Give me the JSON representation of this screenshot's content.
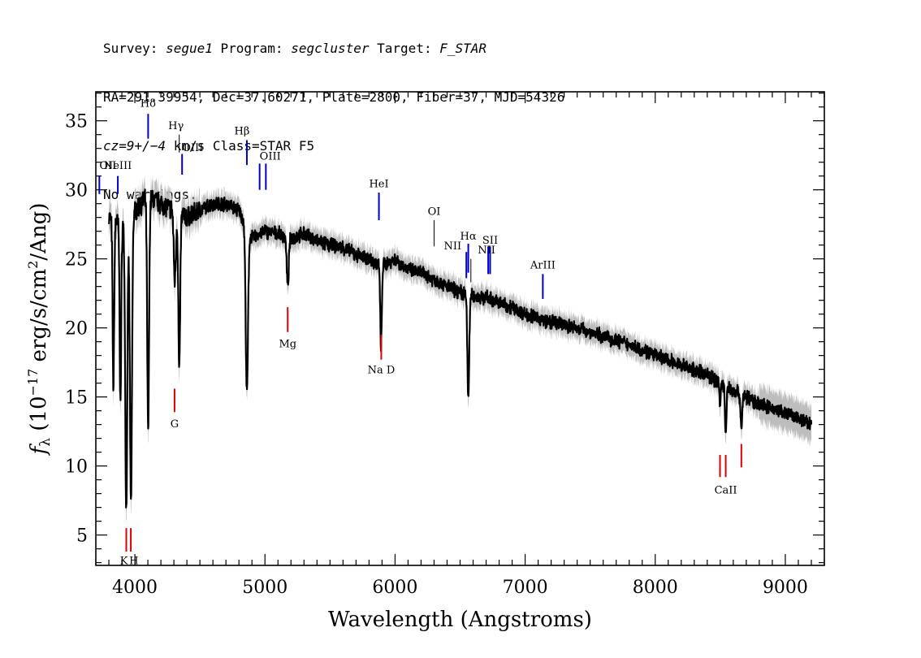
{
  "header": {
    "line1_parts": [
      "Survey: ",
      "segue1",
      " Program: ",
      "segcluster",
      " Target: ",
      "F_STAR"
    ],
    "line2": "RA=291.39954, Dec=37.60271, Plate=2800, Fiber=37, MJD=54326",
    "line3_parts": [
      "cz=9+/−4",
      " km/s Class=STAR F5"
    ],
    "line4": "No warnings."
  },
  "chart_data": {
    "type": "line",
    "xlabel": "Wavelength (Angstroms)",
    "ylabel": "fλ (10^-17 erg/s/cm^2/Ang)",
    "xlim": [
      3700,
      9300
    ],
    "ylim": [
      2.8,
      37.1
    ],
    "xticks": [
      4000,
      5000,
      6000,
      7000,
      8000,
      9000
    ],
    "yticks": [
      5,
      10,
      15,
      20,
      25,
      30,
      35
    ],
    "colors": {
      "spectrum": "#000000",
      "error": "#bdbdbd",
      "emission": "#0000cc",
      "absorption": "#dd0000",
      "marker_thin": "#000000"
    },
    "continuum": [
      [
        3800,
        28
      ],
      [
        3900,
        27.5
      ],
      [
        4000,
        28.5
      ],
      [
        4100,
        29.5
      ],
      [
        4200,
        29
      ],
      [
        4300,
        28.5
      ],
      [
        4400,
        28
      ],
      [
        4500,
        28.5
      ],
      [
        4600,
        29
      ],
      [
        4700,
        29
      ],
      [
        4800,
        28.5
      ],
      [
        4900,
        26.5
      ],
      [
        5000,
        27
      ],
      [
        5100,
        26.8
      ],
      [
        5200,
        26.5
      ],
      [
        5300,
        26.8
      ],
      [
        5400,
        26.3
      ],
      [
        5500,
        26
      ],
      [
        5600,
        25.8
      ],
      [
        5700,
        25.3
      ],
      [
        5800,
        25
      ],
      [
        5900,
        24.5
      ],
      [
        6000,
        25
      ],
      [
        6100,
        24.2
      ],
      [
        6200,
        24
      ],
      [
        6300,
        23.5
      ],
      [
        6400,
        23
      ],
      [
        6500,
        22.6
      ],
      [
        6600,
        22.3
      ],
      [
        6700,
        22.2
      ],
      [
        6800,
        21.8
      ],
      [
        6900,
        21.5
      ],
      [
        7000,
        21
      ],
      [
        7200,
        20.4
      ],
      [
        7400,
        20
      ],
      [
        7600,
        19.4
      ],
      [
        7800,
        18.8
      ],
      [
        8000,
        18
      ],
      [
        8200,
        17.3
      ],
      [
        8400,
        16.6
      ],
      [
        8600,
        15.5
      ],
      [
        8800,
        14.5
      ],
      [
        9000,
        13.8
      ],
      [
        9200,
        13
      ]
    ],
    "absorption_features": [
      {
        "center": 3835,
        "depth": 12,
        "width": 6
      },
      {
        "center": 3889,
        "depth": 13,
        "width": 6
      },
      {
        "center": 3934,
        "depth": 21,
        "width": 8
      },
      {
        "center": 3970,
        "depth": 21,
        "width": 8
      },
      {
        "center": 4102,
        "depth": 17,
        "width": 7
      },
      {
        "center": 4307,
        "depth": 5,
        "width": 8
      },
      {
        "center": 4341,
        "depth": 11.5,
        "width": 7
      },
      {
        "center": 4861,
        "depth": 12,
        "width": 9
      },
      {
        "center": 5175,
        "depth": 3.5,
        "width": 8
      },
      {
        "center": 5892,
        "depth": 6,
        "width": 6
      },
      {
        "center": 6563,
        "depth": 7.5,
        "width": 7
      },
      {
        "center": 8498,
        "depth": 1.5,
        "width": 5
      },
      {
        "center": 8542,
        "depth": 3.5,
        "width": 6
      },
      {
        "center": 8662,
        "depth": 2.5,
        "width": 6
      }
    ],
    "line_markers": [
      {
        "label": "OII",
        "x": 3727,
        "y1": 29.7,
        "y2": 31.0,
        "color": "#0000cc",
        "label_y": 31.5,
        "anchor": "start",
        "dx": 0
      },
      {
        "label": "NeIII",
        "x": 3869,
        "y1": 29.7,
        "y2": 31.0,
        "color": "#0000cc",
        "label_y": 31.5,
        "anchor": "middle",
        "dx": 0
      },
      {
        "label": "Hδ",
        "x": 4102,
        "y1": 33.7,
        "y2": 35.5,
        "color": "#0000cc",
        "label_y": 36.0,
        "anchor": "middle",
        "dx": 0
      },
      {
        "label": "Hγ",
        "x": 4341,
        "y1": 32.7,
        "y2": 34.0,
        "color": "#000000",
        "label_y": 34.4,
        "anchor": "middle",
        "dx": -4
      },
      {
        "label": "OIII",
        "x": 4363,
        "y1": 31.1,
        "y2": 32.6,
        "color": "#0000cc",
        "label_y": 32.8,
        "anchor": "start",
        "dx": 0
      },
      {
        "label": "Hβ",
        "x": 4861,
        "y1": 31.8,
        "y2": 33.6,
        "color": "#0000cc",
        "label_y": 34.0,
        "anchor": "middle",
        "dx": -6
      },
      {
        "label": "OIII",
        "x": 4959,
        "y1": 30.0,
        "y2": 31.9,
        "color": "#0000cc",
        "label_y": 32.2,
        "anchor": "start",
        "dx": 0
      },
      {
        "label": "",
        "x": 5007,
        "y1": 30.0,
        "y2": 31.9,
        "color": "#0000cc",
        "label_y": 0,
        "anchor": "middle",
        "dx": 0
      },
      {
        "label": "HeI",
        "x": 5876,
        "y1": 27.8,
        "y2": 29.8,
        "color": "#0000cc",
        "label_y": 30.2,
        "anchor": "middle",
        "dx": 0
      },
      {
        "label": "OI",
        "x": 6300,
        "y1": 25.9,
        "y2": 27.8,
        "color": "#000000",
        "label_y": 28.2,
        "anchor": "middle",
        "dx": 0
      },
      {
        "label": "NII",
        "x": 6548,
        "y1": 23.6,
        "y2": 25.5,
        "color": "#0000cc",
        "label_y": 25.7,
        "anchor": "end",
        "dx": -6
      },
      {
        "label": "Hα",
        "x": 6563,
        "y1": 24.0,
        "y2": 26.1,
        "color": "#0000cc",
        "label_y": 26.4,
        "anchor": "middle",
        "dx": 0
      },
      {
        "label": "",
        "x": 6583,
        "y1": 23.3,
        "y2": 25.0,
        "color": "#000000",
        "label_y": 0,
        "anchor": "middle",
        "dx": 0
      },
      {
        "label": "NII",
        "x": 6716,
        "y1": 23.9,
        "y2": 25.9,
        "color": "#0000cc",
        "label_y": 25.4,
        "anchor": "middle",
        "dx": -2
      },
      {
        "label": "SII",
        "x": 6731,
        "y1": 23.9,
        "y2": 25.9,
        "color": "#0000cc",
        "label_y": 26.1,
        "anchor": "middle",
        "dx": 0
      },
      {
        "label": "ArIII",
        "x": 7136,
        "y1": 22.1,
        "y2": 23.9,
        "color": "#0000cc",
        "label_y": 24.3,
        "anchor": "middle",
        "dx": 0
      },
      {
        "label": "K",
        "x": 3934,
        "y1": 3.8,
        "y2": 5.5,
        "color": "#dd0000",
        "label_y": 2.9,
        "anchor": "end",
        "dx": 2
      },
      {
        "label": "H",
        "x": 3969,
        "y1": 3.8,
        "y2": 5.5,
        "color": "#dd0000",
        "label_y": 2.9,
        "anchor": "start",
        "dx": -2
      },
      {
        "label": "G",
        "x": 4305,
        "y1": 13.9,
        "y2": 15.6,
        "color": "#dd0000",
        "label_y": 12.8,
        "anchor": "middle",
        "dx": 0
      },
      {
        "label": "Mg",
        "x": 5175,
        "y1": 19.7,
        "y2": 21.5,
        "color": "#dd0000",
        "label_y": 18.6,
        "anchor": "middle",
        "dx": 0
      },
      {
        "label": "Na  D",
        "x": 5894,
        "y1": 17.7,
        "y2": 19.5,
        "color": "#dd0000",
        "label_y": 16.7,
        "anchor": "middle",
        "dx": 0
      },
      {
        "label": "CaII",
        "x": 8542,
        "y1": 9.2,
        "y2": 10.8,
        "color": "#dd0000",
        "label_y": 8.0,
        "anchor": "middle",
        "dx": 0
      },
      {
        "label": "",
        "x": 8498,
        "y1": 9.2,
        "y2": 10.8,
        "color": "#dd0000",
        "label_y": 0,
        "anchor": "middle",
        "dx": 0
      },
      {
        "label": "",
        "x": 8662,
        "y1": 9.9,
        "y2": 11.6,
        "color": "#dd0000",
        "label_y": 0,
        "anchor": "middle",
        "dx": 0
      }
    ]
  }
}
